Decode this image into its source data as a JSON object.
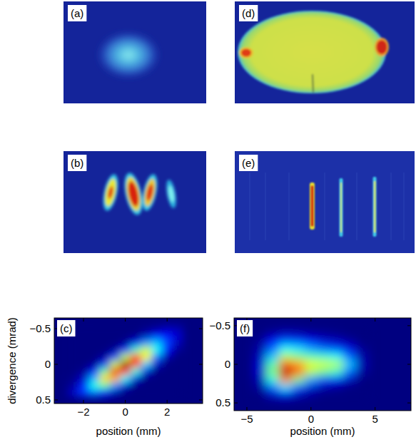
{
  "chart_data": [
    {
      "type": "image",
      "label": "(a)"
    },
    {
      "type": "image",
      "label": "(b)"
    },
    {
      "type": "heatmap",
      "label": "(c)",
      "x_label": "position (mm)",
      "y_label": "divergence (mrad)",
      "xlim": [
        -3.4,
        3.7
      ],
      "ylim": [
        0.55,
        -0.65
      ],
      "xticks": [
        {
          "value": -2,
          "label": "−2"
        },
        0,
        2
      ],
      "yticks": [
        {
          "value": -0.5,
          "label": "−0.5"
        },
        0,
        0.5
      ],
      "x": [
        -2.5,
        -2,
        -1.5,
        -1,
        -0.5,
        0,
        0.5,
        1,
        1.5,
        2,
        2.5
      ],
      "y": [
        -0.5,
        -0.4,
        -0.3,
        -0.2,
        -0.1,
        0,
        0.1,
        0.2,
        0.3,
        0.4
      ],
      "z": [
        [
          0,
          0,
          0,
          0,
          0,
          0,
          0,
          0.01,
          0.03,
          0.06,
          0.05
        ],
        [
          0,
          0,
          0,
          0,
          0,
          0,
          0.01,
          0.06,
          0.14,
          0.14,
          0.08
        ],
        [
          0,
          0,
          0,
          0,
          0,
          0.02,
          0.11,
          0.27,
          0.32,
          0.19,
          0.06
        ],
        [
          0,
          0,
          0,
          0,
          0.03,
          0.16,
          0.43,
          0.58,
          0.38,
          0.13,
          0.02
        ],
        [
          0,
          0,
          0,
          0.03,
          0.18,
          0.56,
          0.84,
          0.63,
          0.23,
          0.04,
          0
        ],
        [
          0,
          0,
          0.02,
          0.16,
          0.57,
          0.97,
          0.81,
          0.33,
          0.07,
          0,
          0
        ],
        [
          0,
          0.02,
          0.12,
          0.47,
          0.89,
          0.84,
          0.4,
          0.09,
          0,
          0,
          0
        ],
        [
          0.01,
          0.07,
          0.3,
          0.66,
          0.7,
          0.37,
          0.09,
          0,
          0,
          0,
          0
        ],
        [
          0.03,
          0.16,
          0.39,
          0.47,
          0.27,
          0.08,
          0,
          0,
          0,
          0,
          0
        ],
        [
          0.07,
          0.18,
          0.25,
          0.16,
          0.05,
          0,
          0,
          0,
          0,
          0,
          0
        ]
      ]
    },
    {
      "type": "image",
      "label": "(d)"
    },
    {
      "type": "image",
      "label": "(e)"
    },
    {
      "type": "heatmap",
      "label": "(f)",
      "x_label": "position (mm)",
      "xlim": [
        -6,
        7.8
      ],
      "ylim": [
        0.6,
        -0.6
      ],
      "xticks": [
        {
          "value": -5,
          "label": "−5"
        },
        0,
        5
      ],
      "yticks": [
        {
          "value": -0.5,
          "label": "−0.5"
        },
        0,
        0.5
      ],
      "x": [
        -4,
        -3,
        -2,
        -1,
        0,
        1,
        2,
        3,
        4
      ],
      "y": [
        -0.4,
        -0.3,
        -0.2,
        -0.1,
        0,
        0.1,
        0.2,
        0.3,
        0.4
      ],
      "z": [
        [
          0,
          0.03,
          0.06,
          0.05,
          0.03,
          0.02,
          0.01,
          0,
          0
        ],
        [
          0.02,
          0.12,
          0.2,
          0.18,
          0.12,
          0.08,
          0.06,
          0.03,
          0
        ],
        [
          0.04,
          0.22,
          0.38,
          0.35,
          0.28,
          0.22,
          0.18,
          0.1,
          0.02
        ],
        [
          0.06,
          0.32,
          0.55,
          0.5,
          0.45,
          0.42,
          0.38,
          0.22,
          0.04
        ],
        [
          0.08,
          0.45,
          0.8,
          0.72,
          0.6,
          0.58,
          0.55,
          0.32,
          0.05
        ],
        [
          0.08,
          0.5,
          0.95,
          0.78,
          0.55,
          0.48,
          0.42,
          0.22,
          0.03
        ],
        [
          0.05,
          0.4,
          0.75,
          0.5,
          0.28,
          0.18,
          0.12,
          0.06,
          0
        ],
        [
          0.03,
          0.22,
          0.35,
          0.2,
          0.08,
          0.04,
          0.02,
          0,
          0
        ],
        [
          0,
          0.06,
          0.1,
          0.05,
          0.02,
          0,
          0,
          0,
          0
        ]
      ]
    }
  ]
}
